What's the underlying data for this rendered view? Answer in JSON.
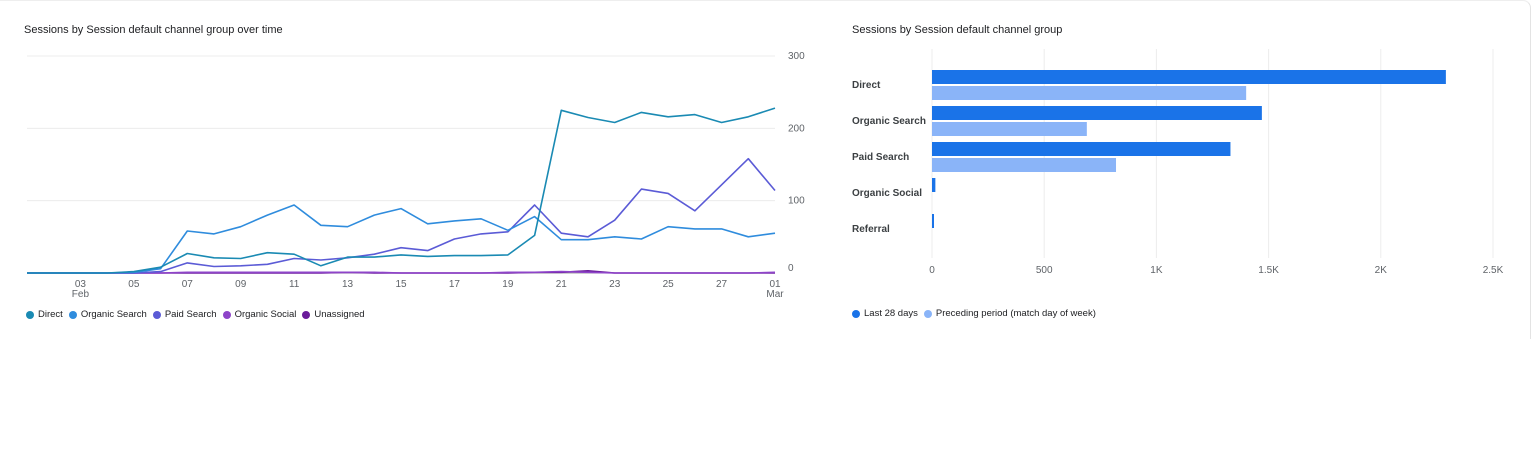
{
  "line_panel": {
    "title": "Sessions by Session default channel group over time",
    "legend": [
      {
        "label": "Direct",
        "color": "#1a8ab3"
      },
      {
        "label": "Organic Search",
        "color": "#2f8cdd"
      },
      {
        "label": "Paid Search",
        "color": "#5b5bd6"
      },
      {
        "label": "Organic Social",
        "color": "#8e44c9"
      },
      {
        "label": "Unassigned",
        "color": "#6a1b9a"
      }
    ]
  },
  "bar_panel": {
    "title": "Sessions by Session default channel group",
    "legend": [
      {
        "label": "Last 28 days",
        "color": "#1a73e8"
      },
      {
        "label": "Preceding period (match day of week)",
        "color": "#8ab4f8"
      }
    ]
  },
  "chart_data": [
    {
      "type": "line",
      "title": "Sessions by Session default channel group over time",
      "x": [
        "Feb 1",
        "Feb 2",
        "Feb 3",
        "Feb 4",
        "Feb 5",
        "Feb 6",
        "Feb 7",
        "Feb 8",
        "Feb 9",
        "Feb 10",
        "Feb 11",
        "Feb 12",
        "Feb 13",
        "Feb 14",
        "Feb 15",
        "Feb 16",
        "Feb 17",
        "Feb 18",
        "Feb 19",
        "Feb 20",
        "Feb 21",
        "Feb 22",
        "Feb 23",
        "Feb 24",
        "Feb 25",
        "Feb 26",
        "Feb 27",
        "Feb 28",
        "Mar 1"
      ],
      "x_tick_labels": [
        {
          "index": 2,
          "label": "03",
          "sub": "Feb"
        },
        {
          "index": 4,
          "label": "05",
          "sub": ""
        },
        {
          "index": 6,
          "label": "07",
          "sub": ""
        },
        {
          "index": 8,
          "label": "09",
          "sub": ""
        },
        {
          "index": 10,
          "label": "11",
          "sub": ""
        },
        {
          "index": 12,
          "label": "13",
          "sub": ""
        },
        {
          "index": 14,
          "label": "15",
          "sub": ""
        },
        {
          "index": 16,
          "label": "17",
          "sub": ""
        },
        {
          "index": 18,
          "label": "19",
          "sub": ""
        },
        {
          "index": 20,
          "label": "21",
          "sub": ""
        },
        {
          "index": 22,
          "label": "23",
          "sub": ""
        },
        {
          "index": 24,
          "label": "25",
          "sub": ""
        },
        {
          "index": 26,
          "label": "27",
          "sub": ""
        },
        {
          "index": 28,
          "label": "01",
          "sub": "Mar"
        }
      ],
      "y_ticks": [
        0,
        100,
        200,
        300
      ],
      "ylim": [
        0,
        300
      ],
      "grid": true,
      "series": [
        {
          "name": "Direct",
          "color": "#1a8ab3",
          "values": [
            0,
            0,
            0,
            0,
            2,
            8,
            27,
            21,
            20,
            28,
            26,
            10,
            22,
            22,
            25,
            23,
            24,
            24,
            25,
            52,
            225,
            215,
            208,
            222,
            216,
            219,
            208,
            216,
            228
          ]
        },
        {
          "name": "Organic Search",
          "color": "#2f8cdd",
          "values": [
            0,
            0,
            0,
            0,
            1,
            6,
            58,
            54,
            64,
            80,
            94,
            66,
            64,
            80,
            89,
            68,
            72,
            75,
            59,
            78,
            46,
            46,
            50,
            47,
            64,
            61,
            61,
            50,
            55
          ]
        },
        {
          "name": "Paid Search",
          "color": "#5b5bd6",
          "values": [
            0,
            0,
            0,
            0,
            0,
            2,
            14,
            9,
            10,
            12,
            20,
            18,
            21,
            26,
            35,
            31,
            47,
            54,
            57,
            94,
            55,
            50,
            73,
            116,
            110,
            86,
            122,
            158,
            114
          ]
        },
        {
          "name": "Organic Social",
          "color": "#8e44c9",
          "values": [
            0,
            0,
            0,
            0,
            0,
            0,
            1,
            1,
            1,
            1,
            1,
            1,
            1,
            1,
            0,
            0,
            0,
            0,
            1,
            1,
            2,
            1,
            0,
            0,
            0,
            0,
            0,
            0,
            1
          ]
        },
        {
          "name": "Unassigned",
          "color": "#6a1b9a",
          "values": [
            0,
            0,
            0,
            0,
            0,
            0,
            0,
            0,
            0,
            0,
            0,
            0,
            1,
            0,
            0,
            0,
            0,
            0,
            0,
            1,
            1,
            3,
            0,
            0,
            0,
            0,
            0,
            0,
            0
          ]
        }
      ]
    },
    {
      "type": "bar",
      "orientation": "horizontal",
      "title": "Sessions by Session default channel group",
      "categories": [
        "Direct",
        "Organic Search",
        "Paid Search",
        "Organic Social",
        "Referral"
      ],
      "x_ticks": [
        0,
        500,
        1000,
        1500,
        2000,
        2500
      ],
      "x_tick_labels": [
        "0",
        "500",
        "1K",
        "1.5K",
        "2K",
        "2.5K"
      ],
      "xlim": [
        0,
        2500
      ],
      "grid": true,
      "series": [
        {
          "name": "Last 28 days",
          "color": "#1a73e8",
          "values": [
            2290,
            1470,
            1330,
            15,
            3
          ]
        },
        {
          "name": "Preceding period (match day of week)",
          "color": "#8ab4f8",
          "values": [
            1400,
            690,
            820,
            0,
            0
          ]
        }
      ]
    }
  ]
}
